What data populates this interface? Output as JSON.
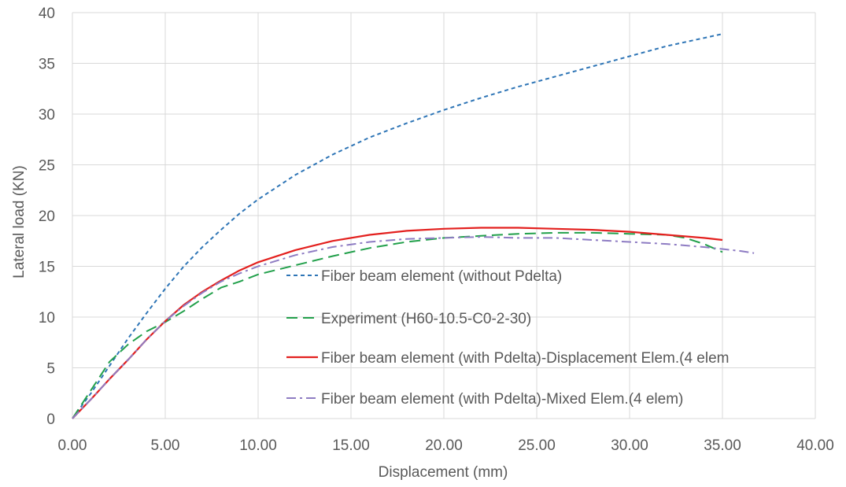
{
  "chart_data": {
    "type": "line",
    "title": "",
    "xlabel": "Displacement (mm)",
    "ylabel": "Lateral load (KN)",
    "xlim": [
      0,
      40
    ],
    "ylim": [
      0,
      40
    ],
    "x_ticks": [
      "0.00",
      "5.00",
      "10.00",
      "15.00",
      "20.00",
      "25.00",
      "30.00",
      "35.00",
      "40.00"
    ],
    "y_ticks": [
      "0",
      "5",
      "10",
      "15",
      "20",
      "25",
      "30",
      "35",
      "40"
    ],
    "grid": true,
    "legend_placement": "center-right",
    "series": [
      {
        "name": "Fiber beam element (without Pdelta)",
        "color": "#2e75b6",
        "dash": "dashed",
        "points": [
          [
            0,
            0
          ],
          [
            1,
            2.5
          ],
          [
            2,
            5.2
          ],
          [
            3,
            7.9
          ],
          [
            4,
            10.4
          ],
          [
            5,
            12.8
          ],
          [
            6,
            15
          ],
          [
            7,
            16.9
          ],
          [
            8,
            18.6
          ],
          [
            9,
            20.2
          ],
          [
            10,
            21.6
          ],
          [
            12,
            24
          ],
          [
            14,
            26
          ],
          [
            16,
            27.7
          ],
          [
            18,
            29.1
          ],
          [
            20,
            30.4
          ],
          [
            22,
            31.6
          ],
          [
            24,
            32.7
          ],
          [
            26,
            33.7
          ],
          [
            28,
            34.7
          ],
          [
            30,
            35.7
          ],
          [
            32,
            36.7
          ],
          [
            34,
            37.5
          ],
          [
            35,
            37.9
          ]
        ]
      },
      {
        "name": "Experiment (H60-10.5-C0-2-30)",
        "color": "#22a04b",
        "dash": "long-dash",
        "points": [
          [
            0,
            0
          ],
          [
            1,
            2.8
          ],
          [
            2,
            5.6
          ],
          [
            3,
            7.3
          ],
          [
            4,
            8.6
          ],
          [
            5,
            9.5
          ],
          [
            6,
            10.6
          ],
          [
            7,
            11.8
          ],
          [
            8,
            12.9
          ],
          [
            9,
            13.5
          ],
          [
            10,
            14.2
          ],
          [
            12,
            15.1
          ],
          [
            14,
            16
          ],
          [
            16,
            16.8
          ],
          [
            18,
            17.4
          ],
          [
            20,
            17.8
          ],
          [
            22,
            18
          ],
          [
            24,
            18.2
          ],
          [
            26,
            18.3
          ],
          [
            28,
            18.3
          ],
          [
            30,
            18.2
          ],
          [
            32,
            18.1
          ],
          [
            33,
            17.8
          ],
          [
            34,
            17.2
          ],
          [
            35,
            16.4
          ]
        ]
      },
      {
        "name": "Fiber beam element (with Pdelta)-Displacement Elem.(4 elem",
        "color": "#e3201e",
        "dash": "solid",
        "points": [
          [
            0,
            0
          ],
          [
            1,
            1.9
          ],
          [
            2,
            3.9
          ],
          [
            3,
            5.8
          ],
          [
            4,
            7.8
          ],
          [
            5,
            9.6
          ],
          [
            6,
            11.2
          ],
          [
            7,
            12.5
          ],
          [
            8,
            13.6
          ],
          [
            9,
            14.6
          ],
          [
            10,
            15.4
          ],
          [
            12,
            16.6
          ],
          [
            14,
            17.5
          ],
          [
            16,
            18.1
          ],
          [
            18,
            18.5
          ],
          [
            20,
            18.7
          ],
          [
            22,
            18.8
          ],
          [
            24,
            18.8
          ],
          [
            26,
            18.7
          ],
          [
            28,
            18.6
          ],
          [
            30,
            18.4
          ],
          [
            32,
            18.1
          ],
          [
            34,
            17.8
          ],
          [
            35,
            17.6
          ]
        ]
      },
      {
        "name": "Fiber beam element (with Pdelta)-Mixed Elem.(4 elem)",
        "color": "#8e7cc3",
        "dash": "dash-dot",
        "points": [
          [
            0,
            0
          ],
          [
            1,
            1.9
          ],
          [
            2,
            3.9
          ],
          [
            3,
            5.8
          ],
          [
            4,
            7.8
          ],
          [
            5,
            9.6
          ],
          [
            6,
            11.1
          ],
          [
            7,
            12.4
          ],
          [
            8,
            13.5
          ],
          [
            9,
            14.3
          ],
          [
            10,
            15
          ],
          [
            12,
            16.1
          ],
          [
            14,
            16.9
          ],
          [
            16,
            17.4
          ],
          [
            18,
            17.7
          ],
          [
            20,
            17.8
          ],
          [
            22,
            17.9
          ],
          [
            24,
            17.8
          ],
          [
            26,
            17.8
          ],
          [
            28,
            17.6
          ],
          [
            30,
            17.4
          ],
          [
            32,
            17.2
          ],
          [
            34,
            16.9
          ],
          [
            36,
            16.5
          ],
          [
            36.7,
            16.3
          ]
        ]
      }
    ]
  }
}
